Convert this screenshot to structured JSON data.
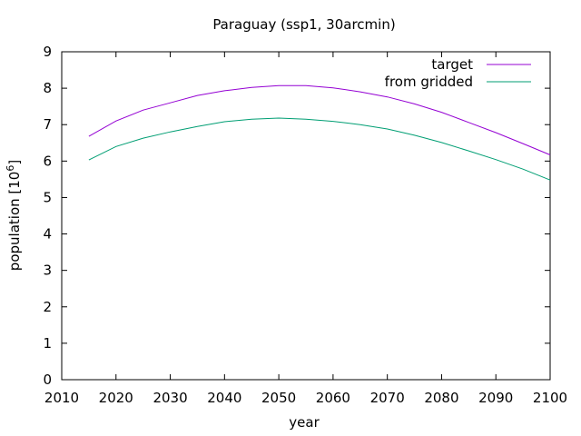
{
  "chart_data": {
    "type": "line",
    "title": "Paraguay (ssp1, 30arcmin)",
    "xlabel": "year",
    "ylabel_prefix": "population [10",
    "ylabel_exponent": "6",
    "ylabel_suffix": "]",
    "xlim": [
      2010,
      2100
    ],
    "ylim": [
      0,
      9
    ],
    "xticks": [
      2010,
      2020,
      2030,
      2040,
      2050,
      2060,
      2070,
      2080,
      2090,
      2100
    ],
    "yticks": [
      0,
      1,
      2,
      3,
      4,
      5,
      6,
      7,
      8,
      9
    ],
    "grid": false,
    "legend_position": "top-right",
    "x": [
      2015,
      2020,
      2025,
      2030,
      2035,
      2040,
      2045,
      2050,
      2055,
      2060,
      2065,
      2070,
      2075,
      2080,
      2085,
      2090,
      2095,
      2100
    ],
    "series": [
      {
        "name": "target",
        "color": "#9400d3",
        "values": [
          6.68,
          7.1,
          7.4,
          7.6,
          7.8,
          7.93,
          8.02,
          8.07,
          8.07,
          8.01,
          7.9,
          7.76,
          7.57,
          7.34,
          7.06,
          6.78,
          6.48,
          6.17
        ]
      },
      {
        "name": "from gridded",
        "color": "#009e73",
        "values": [
          6.03,
          6.4,
          6.63,
          6.8,
          6.95,
          7.08,
          7.15,
          7.18,
          7.15,
          7.09,
          7.0,
          6.88,
          6.71,
          6.51,
          6.28,
          6.04,
          5.78,
          5.48
        ]
      }
    ]
  }
}
